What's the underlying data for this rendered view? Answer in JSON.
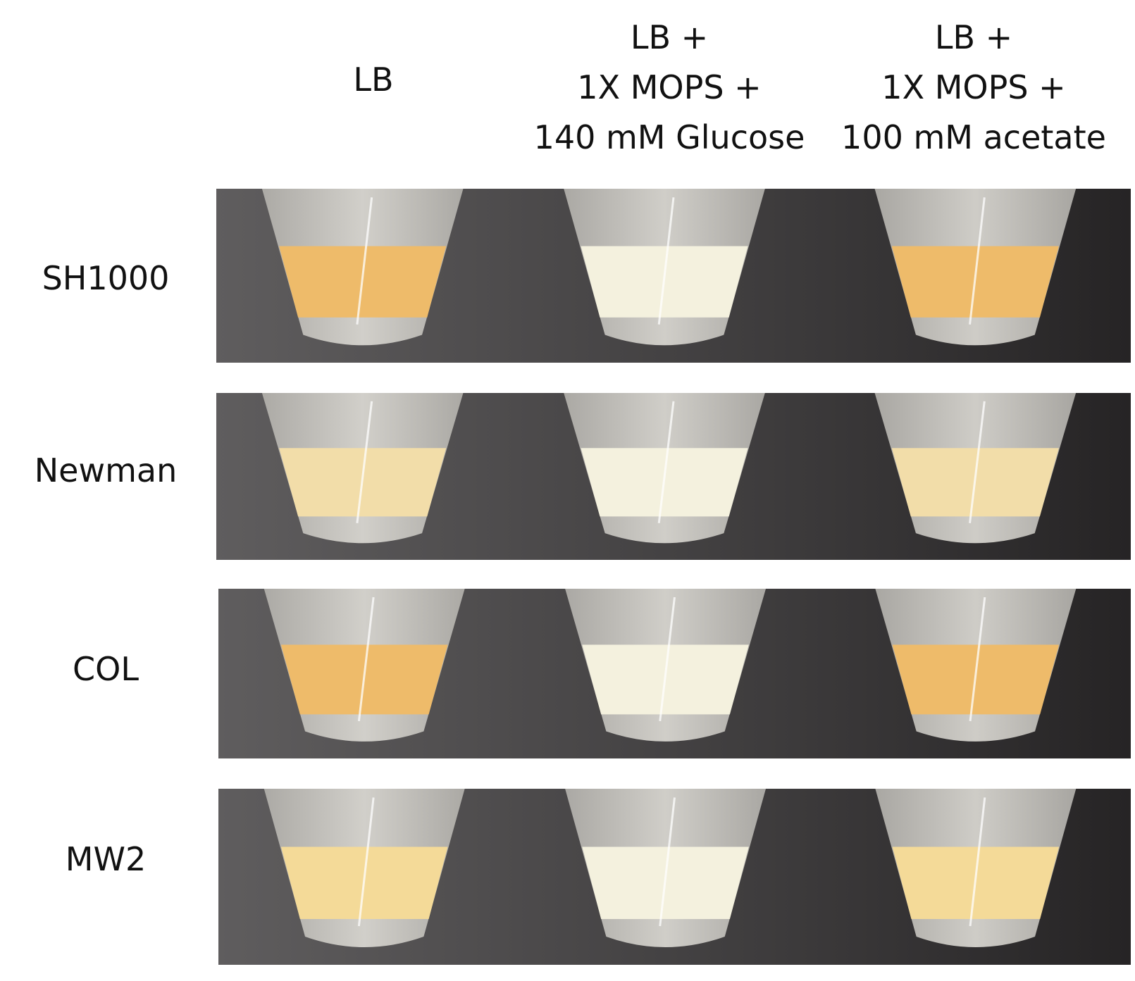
{
  "column_headers": [
    {
      "lines": [
        "LB"
      ]
    },
    {
      "lines": [
        "LB +",
        "1X MOPS +",
        "140 mM Glucose"
      ]
    },
    {
      "lines": [
        "LB +",
        "1X MOPS +",
        "100 mM acetate"
      ]
    }
  ],
  "rows": [
    {
      "label": "SH1000",
      "pellets": [
        "orange",
        "white",
        "orange"
      ]
    },
    {
      "label": "Newman",
      "pellets": [
        "cream",
        "white",
        "cream"
      ]
    },
    {
      "label": "COL",
      "pellets": [
        "orange",
        "white",
        "orange"
      ]
    },
    {
      "label": "MW2",
      "pellets": [
        "yellow",
        "white",
        "yellow"
      ]
    }
  ],
  "colors": {
    "background_dark": "#3c3a3b",
    "tube": "#c9c7c2",
    "pellet_orange": "#eebb6a",
    "pellet_cream": "#f2dda9",
    "pellet_yellow": "#f4da98",
    "pellet_white": "#f4f1de"
  }
}
